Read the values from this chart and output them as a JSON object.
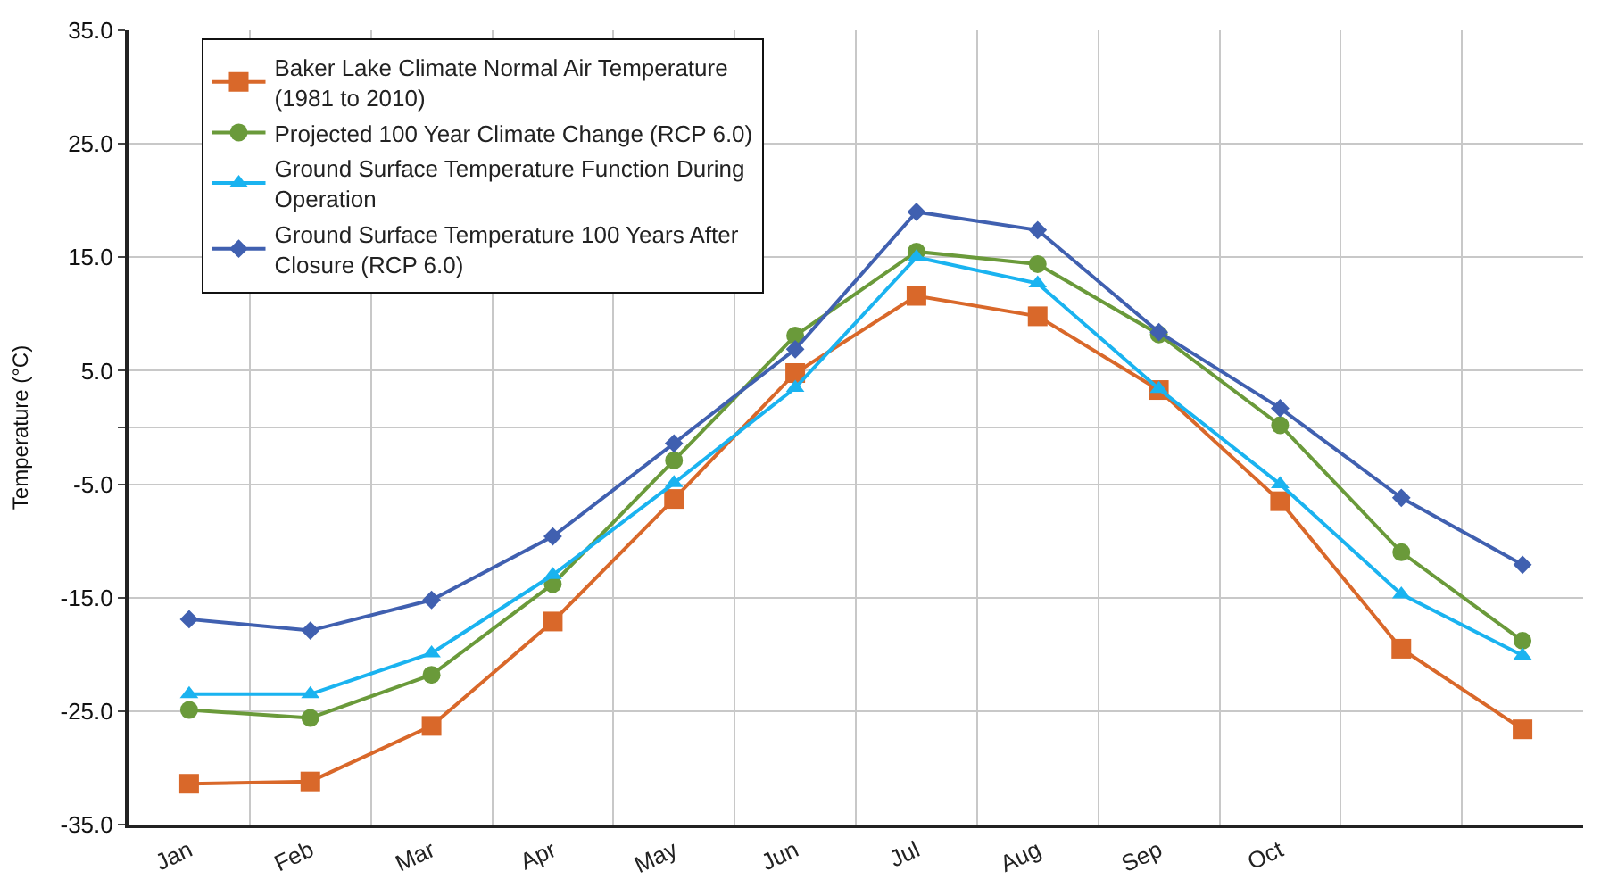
{
  "chart_data": {
    "type": "line",
    "ylabel": "Temperature (°C)",
    "categories": [
      "Jan",
      "Feb",
      "Mar",
      "Apr",
      "May",
      "Jun",
      "Jul",
      "Aug",
      "Sep",
      "Oct",
      null,
      null
    ],
    "series": [
      {
        "name": "Baker Lake Climate Normal Air Temperature (1981 to 2010)",
        "color": "#d9682a",
        "marker": "square",
        "values": [
          -31.4,
          -31.2,
          -26.3,
          -17.1,
          -6.3,
          4.8,
          11.6,
          9.8,
          3.3,
          -6.5,
          -19.5,
          -26.6
        ]
      },
      {
        "name": "Projected 100 Year Climate Change (RCP 6.0)",
        "color": "#6a9a3a",
        "marker": "circle",
        "values": [
          -24.9,
          -25.6,
          -21.8,
          -13.8,
          -2.9,
          8.1,
          15.5,
          14.4,
          8.2,
          0.2,
          -11.0,
          -18.8
        ]
      },
      {
        "name": "Ground Surface Temperature Function During Operation",
        "color": "#1ab3f0",
        "marker": "triangle",
        "values": [
          -23.5,
          -23.5,
          -19.9,
          -13.0,
          -4.9,
          3.5,
          15.0,
          12.7,
          3.4,
          -5.0,
          -14.7,
          -20.1
        ]
      },
      {
        "name": "Ground Surface Temperature 100 Years After Closure (RCP 6.0)",
        "color": "#4060b0",
        "marker": "diamond",
        "values": [
          -16.9,
          -17.9,
          -15.2,
          -9.6,
          -1.4,
          6.9,
          19.0,
          17.4,
          8.4,
          1.7,
          -6.2,
          -12.1
        ]
      }
    ],
    "ylim": [
      -35,
      35
    ],
    "yticks": [
      {
        "value": -35,
        "label": "-35.0"
      },
      {
        "value": -25,
        "label": "-25.0"
      },
      {
        "value": -15,
        "label": "-15.0"
      },
      {
        "value": -5,
        "label": "-5.0"
      },
      {
        "value": 0,
        "label": null
      },
      {
        "value": 5,
        "label": "5.0"
      },
      {
        "value": 15,
        "label": "15.0"
      },
      {
        "value": 25,
        "label": "25.0"
      },
      {
        "value": 35,
        "label": "35.0"
      }
    ],
    "grid": true,
    "legend": "top left",
    "line_style": "solid"
  }
}
